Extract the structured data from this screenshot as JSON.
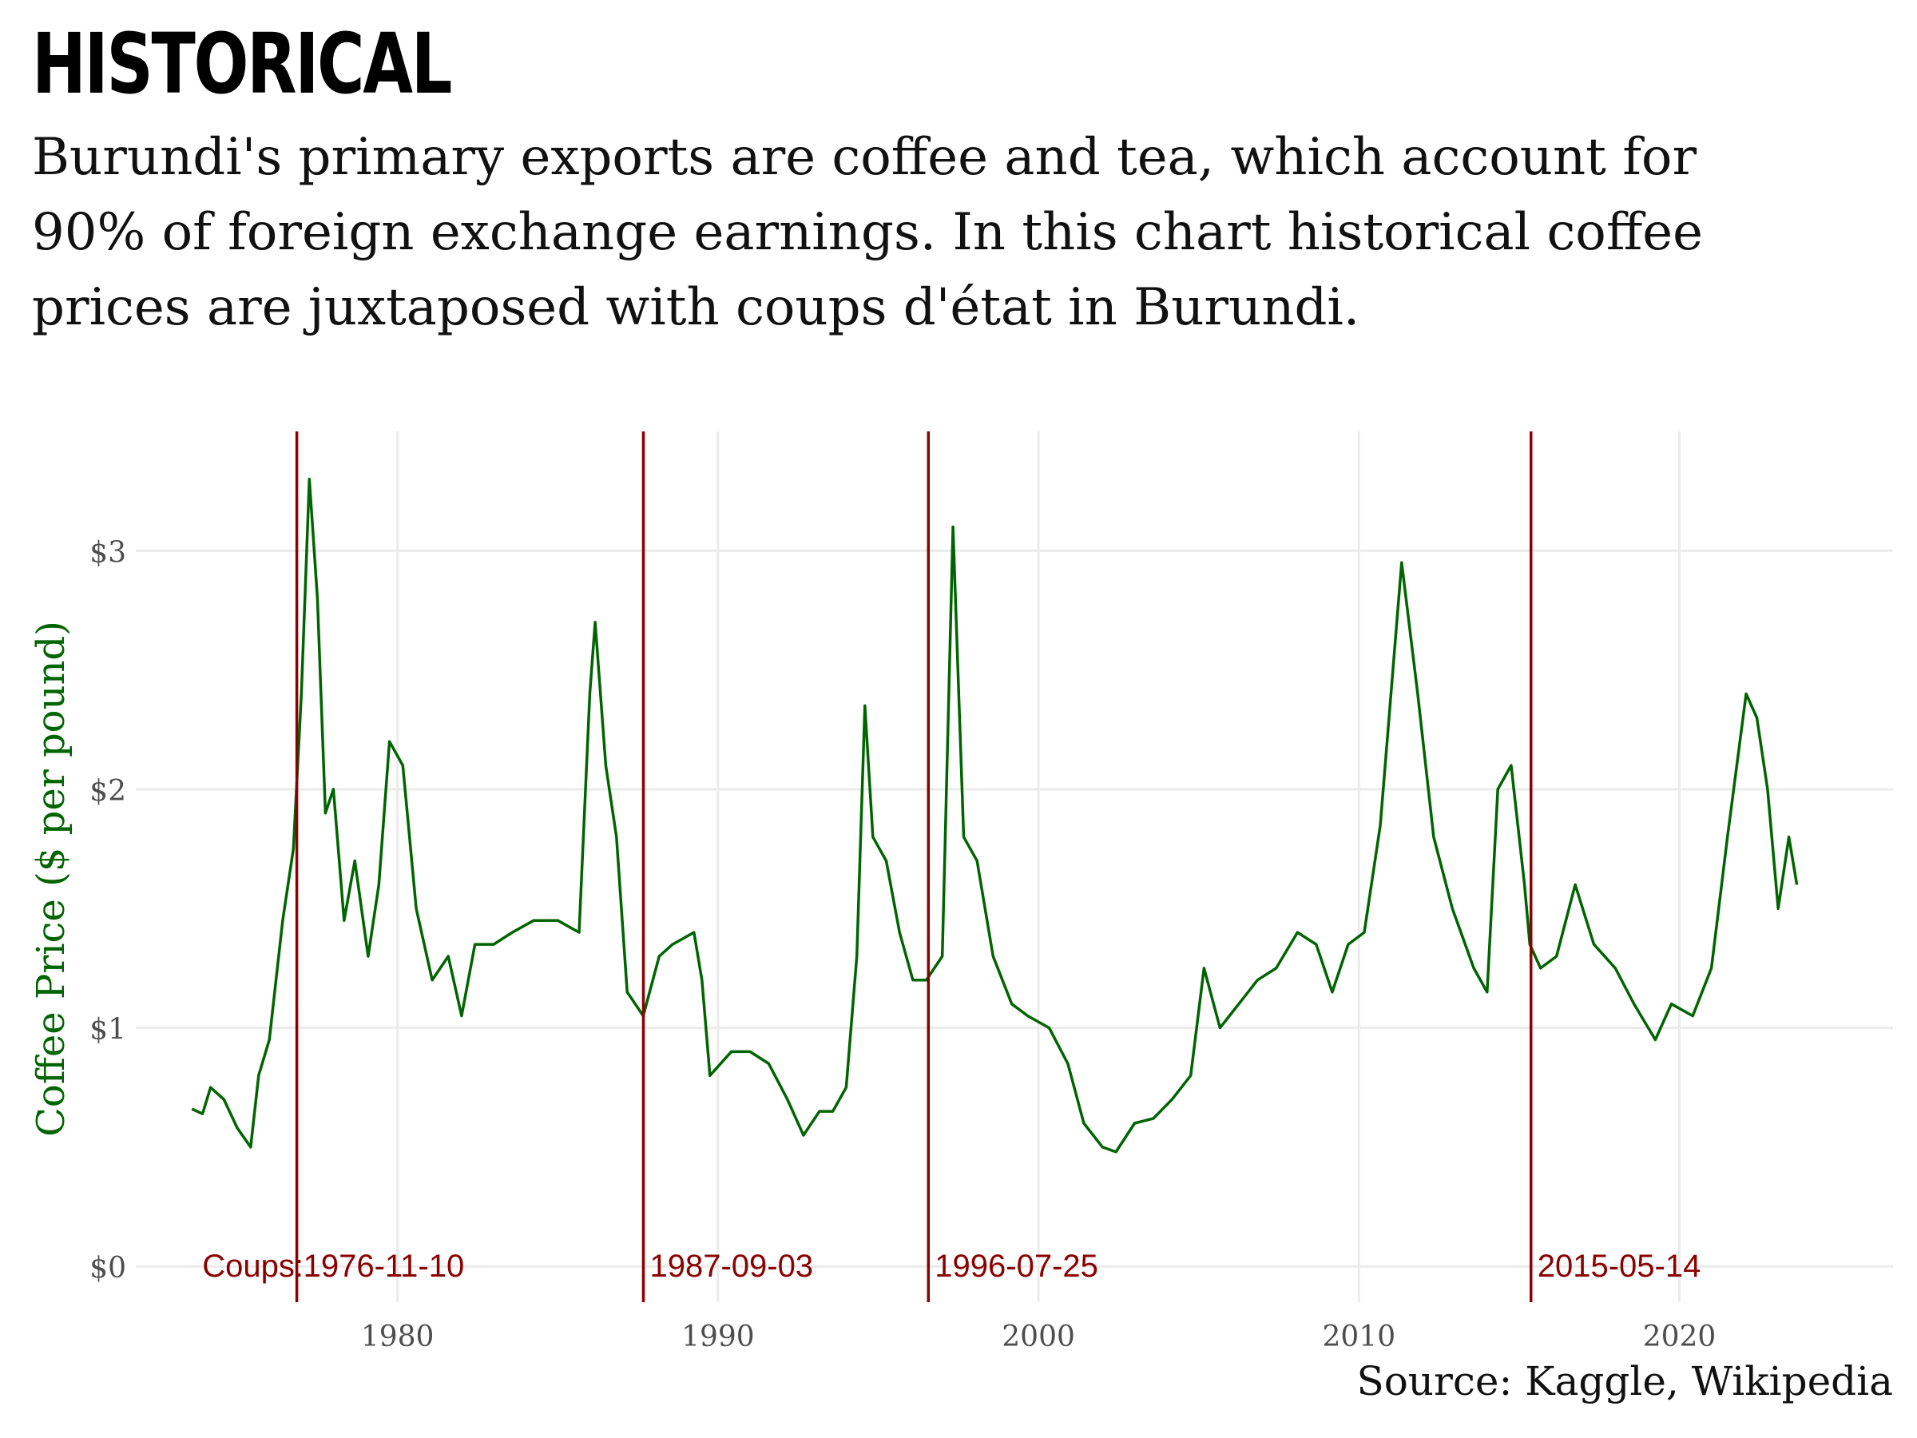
{
  "title": "HISTORICAL",
  "subtitle": "Burundi's primary exports are coffee and tea, which account for 90% of foreign exchange earnings. In this chart historical coffee prices are juxtaposed with coups d'état in Burundi.",
  "source": "Source: Kaggle, Wikipedia",
  "colors": {
    "line": "#006400",
    "coup": "#8b0000",
    "grid": "#ebebeb",
    "tick": "#4d4d4d"
  },
  "chart_data": {
    "type": "line",
    "ylabel": "Coffee Price ($ per pound)",
    "xlabel": "",
    "xlim": [
      "1971-11-01",
      "2026-09-01"
    ],
    "ylim": [
      -0.15,
      3.5
    ],
    "x_ticks": [
      "1980",
      "1990",
      "2000",
      "2010",
      "2020"
    ],
    "y_ticks": [
      {
        "value": 0,
        "label": "$0"
      },
      {
        "value": 1,
        "label": "$1"
      },
      {
        "value": 2,
        "label": "$2"
      },
      {
        "value": 3,
        "label": "$3"
      }
    ],
    "grid": true,
    "legend": "none",
    "coups_label": "Coups:",
    "coups": [
      "1976-11-10",
      "1987-09-03",
      "1996-07-25",
      "2015-05-14"
    ],
    "series": [
      {
        "points": [
          [
            "1973-08-01",
            0.66
          ],
          [
            "1973-12-01",
            0.64
          ],
          [
            "1974-03-01",
            0.75
          ],
          [
            "1974-08-01",
            0.7
          ],
          [
            "1975-01-01",
            0.58
          ],
          [
            "1975-06-01",
            0.5
          ],
          [
            "1975-09-01",
            0.8
          ],
          [
            "1976-01-01",
            0.95
          ],
          [
            "1976-06-01",
            1.45
          ],
          [
            "1976-10-01",
            1.75
          ],
          [
            "1977-01-01",
            2.4
          ],
          [
            "1977-04-01",
            3.3
          ],
          [
            "1977-07-01",
            2.8
          ],
          [
            "1977-10-01",
            1.9
          ],
          [
            "1978-01-01",
            2.0
          ],
          [
            "1978-05-01",
            1.45
          ],
          [
            "1978-09-01",
            1.7
          ],
          [
            "1979-02-01",
            1.3
          ],
          [
            "1979-06-01",
            1.6
          ],
          [
            "1979-10-01",
            2.2
          ],
          [
            "1980-03-01",
            2.1
          ],
          [
            "1980-08-01",
            1.5
          ],
          [
            "1981-02-01",
            1.2
          ],
          [
            "1981-08-01",
            1.3
          ],
          [
            "1982-01-01",
            1.05
          ],
          [
            "1982-06-01",
            1.35
          ],
          [
            "1983-01-01",
            1.35
          ],
          [
            "1983-08-01",
            1.4
          ],
          [
            "1984-04-01",
            1.45
          ],
          [
            "1985-01-01",
            1.45
          ],
          [
            "1985-09-01",
            1.4
          ],
          [
            "1986-01-01",
            2.4
          ],
          [
            "1986-03-01",
            2.7
          ],
          [
            "1986-07-01",
            2.1
          ],
          [
            "1986-11-01",
            1.8
          ],
          [
            "1987-03-01",
            1.15
          ],
          [
            "1987-09-01",
            1.05
          ],
          [
            "1988-03-01",
            1.3
          ],
          [
            "1988-08-01",
            1.35
          ],
          [
            "1989-04-01",
            1.4
          ],
          [
            "1989-07-01",
            1.2
          ],
          [
            "1989-10-01",
            0.8
          ],
          [
            "1990-06-01",
            0.9
          ],
          [
            "1991-01-01",
            0.9
          ],
          [
            "1991-08-01",
            0.85
          ],
          [
            "1992-03-01",
            0.7
          ],
          [
            "1992-09-01",
            0.55
          ],
          [
            "1993-03-01",
            0.65
          ],
          [
            "1993-08-01",
            0.65
          ],
          [
            "1994-01-01",
            0.75
          ],
          [
            "1994-05-01",
            1.3
          ],
          [
            "1994-08-01",
            2.35
          ],
          [
            "1994-11-01",
            1.8
          ],
          [
            "1995-04-01",
            1.7
          ],
          [
            "1995-09-01",
            1.4
          ],
          [
            "1996-02-01",
            1.2
          ],
          [
            "1996-07-01",
            1.2
          ],
          [
            "1997-01-01",
            1.3
          ],
          [
            "1997-05-01",
            3.1
          ],
          [
            "1997-09-01",
            1.8
          ],
          [
            "1998-02-01",
            1.7
          ],
          [
            "1998-08-01",
            1.3
          ],
          [
            "1999-03-01",
            1.1
          ],
          [
            "1999-09-01",
            1.05
          ],
          [
            "2000-05-01",
            1.0
          ],
          [
            "2000-12-01",
            0.85
          ],
          [
            "2001-06-01",
            0.6
          ],
          [
            "2002-01-01",
            0.5
          ],
          [
            "2002-06-01",
            0.48
          ],
          [
            "2003-01-01",
            0.6
          ],
          [
            "2003-08-01",
            0.62
          ],
          [
            "2004-03-01",
            0.7
          ],
          [
            "2004-10-01",
            0.8
          ],
          [
            "2005-03-01",
            1.25
          ],
          [
            "2005-09-01",
            1.0
          ],
          [
            "2006-04-01",
            1.1
          ],
          [
            "2006-11-01",
            1.2
          ],
          [
            "2007-06-01",
            1.25
          ],
          [
            "2008-02-01",
            1.4
          ],
          [
            "2008-09-01",
            1.35
          ],
          [
            "2009-03-01",
            1.15
          ],
          [
            "2009-09-01",
            1.35
          ],
          [
            "2010-03-01",
            1.4
          ],
          [
            "2010-09-01",
            1.85
          ],
          [
            "2011-05-01",
            2.95
          ],
          [
            "2011-11-01",
            2.4
          ],
          [
            "2012-05-01",
            1.8
          ],
          [
            "2012-12-01",
            1.5
          ],
          [
            "2013-08-01",
            1.25
          ],
          [
            "2014-01-01",
            1.15
          ],
          [
            "2014-05-01",
            2.0
          ],
          [
            "2014-10-01",
            2.1
          ],
          [
            "2015-03-01",
            1.6
          ],
          [
            "2015-05-01",
            1.35
          ],
          [
            "2015-09-01",
            1.25
          ],
          [
            "2016-03-01",
            1.3
          ],
          [
            "2016-10-01",
            1.6
          ],
          [
            "2017-05-01",
            1.35
          ],
          [
            "2018-01-01",
            1.25
          ],
          [
            "2018-08-01",
            1.1
          ],
          [
            "2019-04-01",
            0.95
          ],
          [
            "2019-10-01",
            1.1
          ],
          [
            "2020-06-01",
            1.05
          ],
          [
            "2021-01-01",
            1.25
          ],
          [
            "2021-07-01",
            1.8
          ],
          [
            "2022-02-01",
            2.4
          ],
          [
            "2022-06-01",
            2.3
          ],
          [
            "2022-10-01",
            2.0
          ],
          [
            "2023-02-01",
            1.5
          ],
          [
            "2023-06-01",
            1.8
          ],
          [
            "2023-09-01",
            1.6
          ]
        ]
      }
    ]
  }
}
